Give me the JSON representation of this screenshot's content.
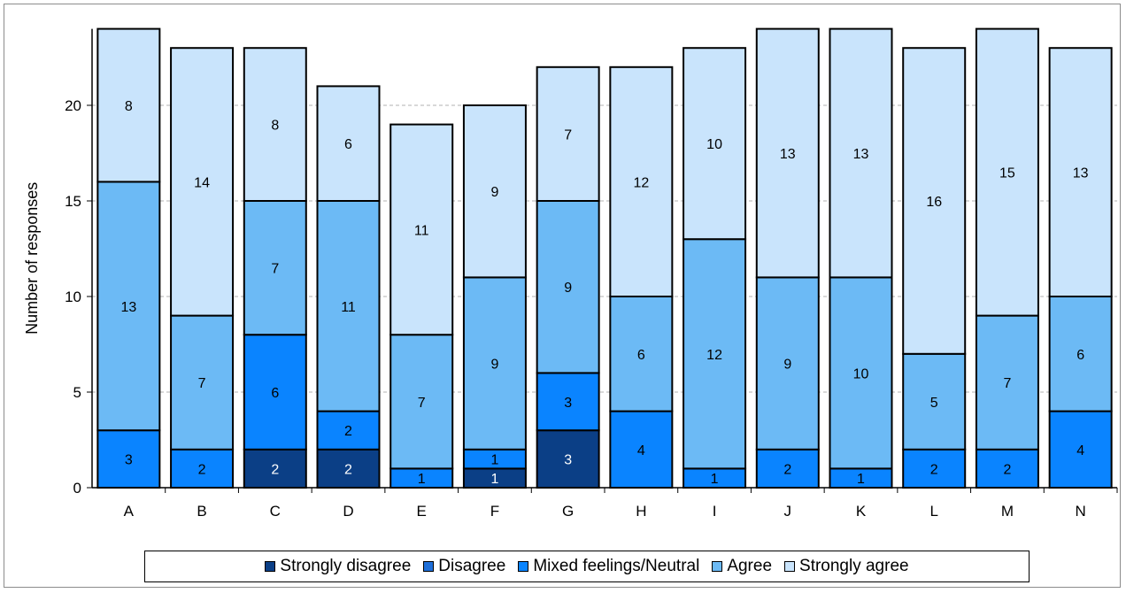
{
  "chart_data": {
    "type": "bar",
    "stacked": true,
    "title": "",
    "xlabel": "",
    "ylabel": "Number of responses",
    "ylim": [
      0,
      24
    ],
    "yticks": [
      0,
      5,
      10,
      15,
      20
    ],
    "grid": true,
    "legend_position": "bottom",
    "categories": [
      "A",
      "B",
      "C",
      "D",
      "E",
      "F",
      "G",
      "H",
      "I",
      "J",
      "K",
      "L",
      "M",
      "N"
    ],
    "series": [
      {
        "name": "Strongly disagree",
        "color": "#0b3f86",
        "label_color": "#ffffff",
        "values": [
          0,
          0,
          2,
          2,
          0,
          1,
          3,
          0,
          0,
          0,
          0,
          0,
          0,
          0
        ]
      },
      {
        "name": "Disagree",
        "color": "#1e6fd9",
        "label_color": "#ffffff",
        "values": [
          0,
          0,
          0,
          0,
          0,
          0,
          0,
          0,
          0,
          0,
          0,
          0,
          0,
          0
        ]
      },
      {
        "name": "Mixed feelings/Neutral",
        "color": "#0a84ff",
        "label_color": "#000000",
        "values": [
          3,
          2,
          6,
          2,
          1,
          1,
          3,
          4,
          1,
          2,
          1,
          2,
          2,
          4
        ]
      },
      {
        "name": "Agree",
        "color": "#6cbaf5",
        "label_color": "#000000",
        "values": [
          13,
          7,
          7,
          11,
          7,
          9,
          9,
          6,
          12,
          9,
          10,
          5,
          7,
          6
        ]
      },
      {
        "name": "Strongly agree",
        "color": "#c9e4fc",
        "label_color": "#000000",
        "values": [
          8,
          14,
          8,
          6,
          11,
          9,
          7,
          12,
          10,
          13,
          13,
          16,
          15,
          13
        ]
      }
    ]
  }
}
